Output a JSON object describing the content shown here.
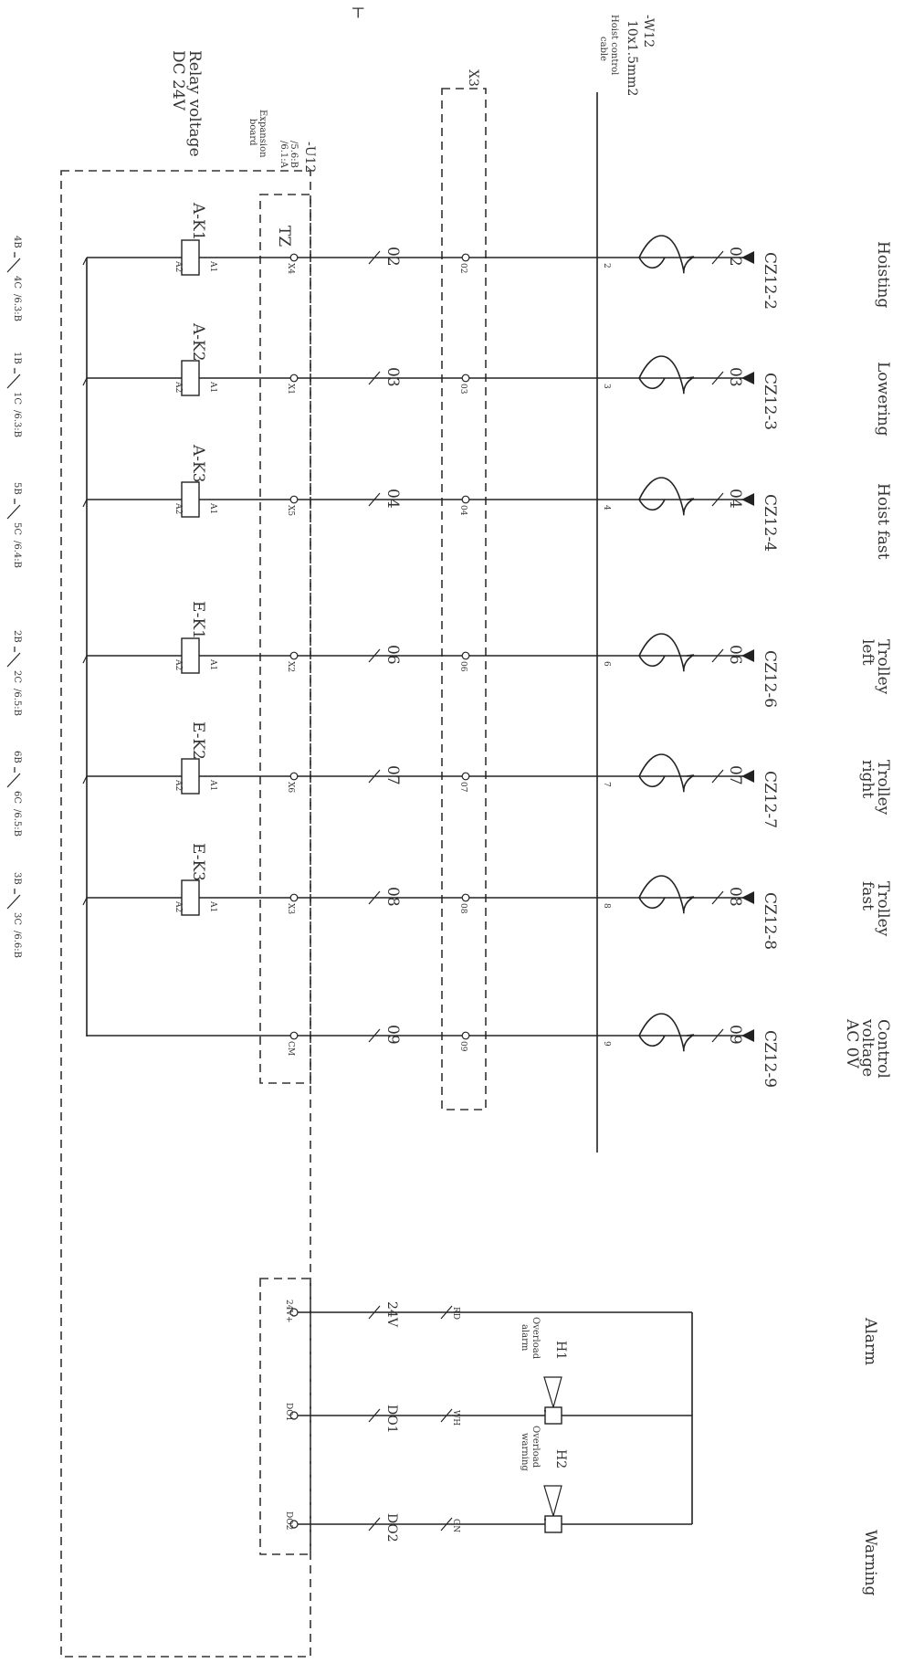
{
  "cable": {
    "tag": "-W12",
    "spec": "10x1.5mm2",
    "desc_1": "Hoist control",
    "desc_2": "cable"
  },
  "terminal_block": {
    "tag": "X3"
  },
  "relay_voltage": {
    "line_1": "Relay voltage",
    "line_2": "DC 24V"
  },
  "expansion_board": {
    "tag": "-U12",
    "ref_1": "/5.6:B",
    "ref_2": "/6.1:A",
    "name_1": "Expansion",
    "name_2": "board",
    "module": "TZ"
  },
  "top_mark": "⊢",
  "rows": [
    {
      "func_1": "Hoisting",
      "func_2": "",
      "func_3": "",
      "connector": "CZ12-2",
      "wire": "02",
      "x3_terminal": "02",
      "cable_core": "2",
      "board_terminal": "X4",
      "relay": "A-K1",
      "a1": "A1",
      "a2": "A2"
    },
    {
      "func_1": "Lowering",
      "func_2": "",
      "func_3": "",
      "connector": "CZ12-3",
      "wire": "03",
      "x3_terminal": "03",
      "cable_core": "3",
      "board_terminal": "X1",
      "relay": "A-K2",
      "a1": "A1",
      "a2": "A2"
    },
    {
      "func_1": "Hoist fast",
      "func_2": "",
      "func_3": "",
      "connector": "CZ12-4",
      "wire": "04",
      "x3_terminal": "04",
      "cable_core": "4",
      "board_terminal": "X5",
      "relay": "A-K3",
      "a1": "A1",
      "a2": "A2"
    },
    {
      "func_1": "Trolley",
      "func_2": "left",
      "func_3": "",
      "connector": "CZ12-6",
      "wire": "06",
      "x3_terminal": "06",
      "cable_core": "6",
      "board_terminal": "X2",
      "relay": "E-K1",
      "a1": "A1",
      "a2": "A2"
    },
    {
      "func_1": "Trolley",
      "func_2": "right",
      "func_3": "",
      "connector": "CZ12-7",
      "wire": "07",
      "x3_terminal": "07",
      "cable_core": "7",
      "board_terminal": "X6",
      "relay": "E-K2",
      "a1": "A1",
      "a2": "A2"
    },
    {
      "func_1": "Trolley",
      "func_2": "fast",
      "func_3": "",
      "connector": "CZ12-8",
      "wire": "08",
      "x3_terminal": "08",
      "cable_core": "8",
      "board_terminal": "X3",
      "relay": "E-K3",
      "a1": "A1",
      "a2": "A2"
    },
    {
      "func_1": "Control",
      "func_2": "voltage",
      "func_3": "AC 0V",
      "connector": "CZ12-9",
      "wire": "09",
      "x3_terminal": "09",
      "cable_core": "9",
      "board_terminal": "CM",
      "relay": "",
      "a1": "",
      "a2": ""
    }
  ],
  "contacts": [
    {
      "from": "4B",
      "to": "4C",
      "ref": "/6.3:B"
    },
    {
      "from": "1B",
      "to": "1C",
      "ref": "/6.3:B"
    },
    {
      "from": "5B",
      "to": "5C",
      "ref": "/6.4:B"
    },
    {
      "from": "2B",
      "to": "2C",
      "ref": "/6.5:B"
    },
    {
      "from": "6B",
      "to": "6C",
      "ref": "/6.5:B"
    },
    {
      "from": "3B",
      "to": "3C",
      "ref": "/6.6:B"
    }
  ],
  "alarm_rows": [
    {
      "func": "Alarm",
      "wire": "24V",
      "color": "RD",
      "terminal": "24V+"
    },
    {
      "func": "",
      "wire": "DO1",
      "color": "WH",
      "terminal": "DO1"
    },
    {
      "func": "Warning",
      "wire": "DO2",
      "color": "GN",
      "terminal": "DO2"
    }
  ],
  "horns": [
    {
      "tag": "H1",
      "desc_1": "Overload",
      "desc_2": "alarm"
    },
    {
      "tag": "H2",
      "desc_1": "Overload",
      "desc_2": "warning"
    }
  ]
}
